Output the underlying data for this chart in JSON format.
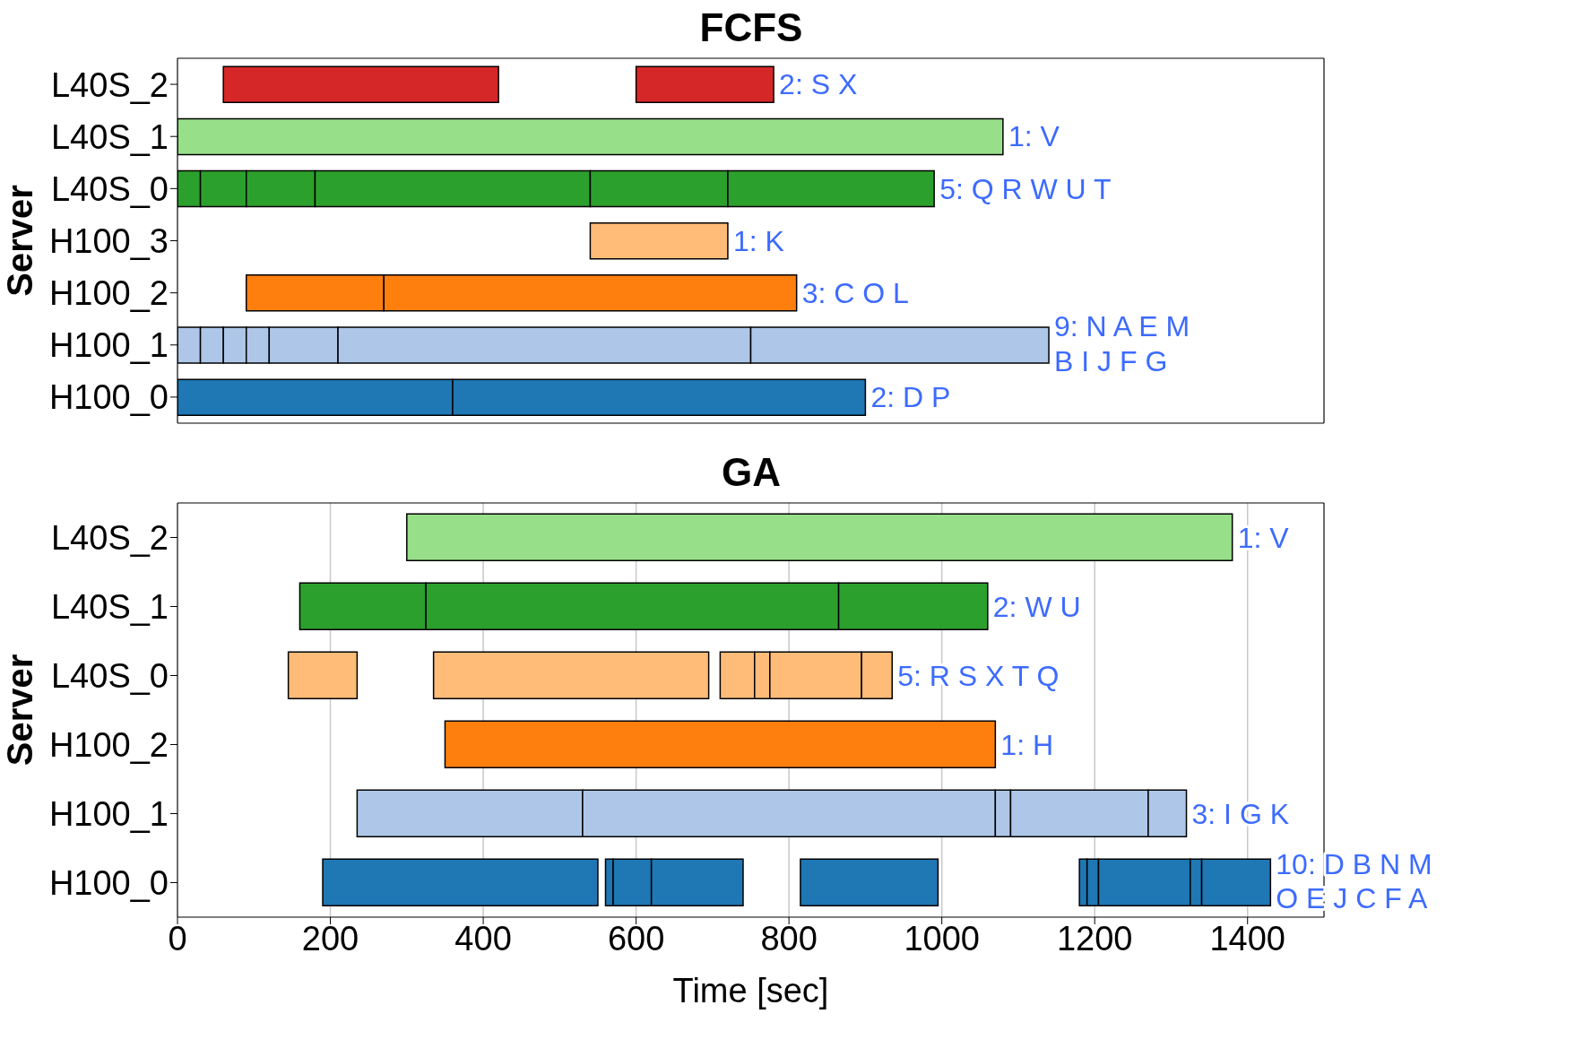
{
  "chart_data": [
    {
      "type": "bar",
      "title": "FCFS",
      "ylabel": "Server",
      "orientation": "horizontal",
      "categories": [
        "L40S_2",
        "L40S_1",
        "L40S_0",
        "H100_3",
        "H100_2",
        "H100_1",
        "H100_0"
      ],
      "xlim": [
        0,
        1500
      ],
      "xticks": [
        0,
        200,
        400,
        600,
        800,
        1000,
        1200,
        1400
      ],
      "grid": "x",
      "tick_labels": "y",
      "series": [
        {
          "base": [
            60,
            0,
            0,
            540,
            90,
            0,
            0
          ],
          "values": [
            360,
            1080,
            30,
            180,
            180,
            30,
            360
          ],
          "colors": [
            "#d62728",
            "#98df8a",
            "#2ca02c",
            "#ffbb78",
            "#ff7f0e",
            "#aec7e8",
            "#1f77b4"
          ]
        },
        {
          "base": [
            600,
            null,
            30,
            null,
            270,
            30,
            360
          ],
          "values": [
            180,
            null,
            60,
            null,
            540,
            30,
            540
          ],
          "colors": [
            "#d62728",
            null,
            "#2ca02c",
            null,
            "#ff7f0e",
            "#aec7e8",
            "#1f77b4"
          ]
        },
        {
          "base": [
            null,
            null,
            90,
            null,
            null,
            60,
            null
          ],
          "values": [
            null,
            null,
            90,
            null,
            null,
            30,
            null
          ],
          "colors": [
            null,
            null,
            "#2ca02c",
            null,
            null,
            "#aec7e8",
            null
          ]
        },
        {
          "base": [
            null,
            null,
            180,
            null,
            null,
            90,
            null
          ],
          "values": [
            null,
            null,
            360,
            null,
            null,
            30,
            null
          ],
          "colors": [
            null,
            null,
            "#2ca02c",
            null,
            null,
            "#aec7e8",
            null
          ]
        },
        {
          "base": [
            null,
            null,
            540,
            null,
            null,
            120,
            null
          ],
          "values": [
            null,
            null,
            180,
            null,
            null,
            90,
            null
          ],
          "colors": [
            null,
            null,
            "#2ca02c",
            null,
            null,
            "#aec7e8",
            null
          ]
        },
        {
          "base": [
            null,
            null,
            720,
            null,
            null,
            210,
            null
          ],
          "values": [
            null,
            null,
            270,
            null,
            null,
            540,
            null
          ],
          "colors": [
            null,
            null,
            "#2ca02c",
            null,
            null,
            "#aec7e8",
            null
          ]
        },
        {
          "base": [
            null,
            null,
            null,
            null,
            null,
            750,
            null
          ],
          "values": [
            null,
            null,
            null,
            null,
            null,
            390,
            null
          ],
          "colors": [
            null,
            null,
            null,
            null,
            null,
            "#aec7e8",
            null
          ]
        }
      ],
      "annotations": [
        {
          "text": "2: S X",
          "x": 780,
          "y": "L40S_2"
        },
        {
          "text": "1: V",
          "x": 1080,
          "y": "L40S_1"
        },
        {
          "text": "5: Q R W U T",
          "x": 990,
          "y": "L40S_0"
        },
        {
          "text": "1: K",
          "x": 720,
          "y": "H100_3"
        },
        {
          "text": "3: C O L",
          "x": 810,
          "y": "H100_2"
        },
        {
          "text": "9: N A E M\nB I J F G",
          "x": 1140,
          "y": "H100_1"
        },
        {
          "text": "2: D P",
          "x": 900,
          "y": "H100_0"
        }
      ]
    },
    {
      "type": "bar",
      "title": "GA",
      "ylabel": "Server",
      "xlabel": "Time [sec]",
      "orientation": "horizontal",
      "categories": [
        "L40S_2",
        "L40S_1",
        "L40S_0",
        "H100_2",
        "H100_1",
        "H100_0"
      ],
      "xlim": [
        0,
        1500
      ],
      "xticks": [
        0,
        200,
        400,
        600,
        800,
        1000,
        1200,
        1400
      ],
      "grid": "x",
      "series": [
        {
          "base": [
            300,
            160,
            145,
            350,
            235,
            190
          ],
          "values": [
            1080,
            165,
            90,
            720,
            295,
            360
          ],
          "colors": [
            "#98df8a",
            "#2ca02c",
            "#ffbb78",
            "#ff7f0e",
            "#aec7e8",
            "#1f77b4"
          ]
        },
        {
          "base": [
            null,
            325,
            335,
            null,
            530,
            560
          ],
          "values": [
            null,
            540,
            360,
            null,
            540,
            10
          ],
          "colors": [
            null,
            "#2ca02c",
            "#ffbb78",
            null,
            "#aec7e8",
            "#1f77b4"
          ]
        },
        {
          "base": [
            null,
            865,
            710,
            null,
            1070,
            570
          ],
          "values": [
            null,
            195,
            45,
            null,
            20,
            50
          ],
          "colors": [
            null,
            "#2ca02c",
            "#ffbb78",
            null,
            "#aec7e8",
            "#1f77b4"
          ]
        },
        {
          "base": [
            null,
            null,
            755,
            null,
            1090,
            620
          ],
          "values": [
            null,
            null,
            20,
            null,
            180,
            120
          ],
          "colors": [
            null,
            null,
            "#ffbb78",
            null,
            "#aec7e8",
            "#1f77b4"
          ]
        },
        {
          "base": [
            null,
            null,
            775,
            null,
            1270,
            815
          ],
          "values": [
            null,
            null,
            120,
            null,
            50,
            180
          ],
          "colors": [
            null,
            null,
            "#ffbb78",
            null,
            "#aec7e8",
            "#1f77b4"
          ]
        },
        {
          "base": [
            null,
            null,
            895,
            null,
            null,
            1180
          ],
          "values": [
            null,
            null,
            40,
            null,
            null,
            10
          ],
          "colors": [
            null,
            null,
            "#ffbb78",
            null,
            null,
            "#1f77b4"
          ]
        },
        {
          "base": [
            null,
            null,
            null,
            null,
            null,
            1190
          ],
          "values": [
            null,
            null,
            null,
            null,
            null,
            15
          ],
          "colors": [
            null,
            null,
            null,
            null,
            null,
            "#1f77b4"
          ]
        },
        {
          "base": [
            null,
            null,
            null,
            null,
            null,
            1205
          ],
          "values": [
            null,
            null,
            null,
            null,
            null,
            120
          ],
          "colors": [
            null,
            null,
            null,
            null,
            null,
            "#1f77b4"
          ]
        },
        {
          "base": [
            null,
            null,
            null,
            null,
            null,
            1325
          ],
          "values": [
            null,
            null,
            null,
            null,
            null,
            15
          ],
          "colors": [
            null,
            null,
            null,
            null,
            null,
            "#1f77b4"
          ]
        },
        {
          "base": [
            null,
            null,
            null,
            null,
            null,
            1340
          ],
          "values": [
            null,
            null,
            null,
            null,
            null,
            90
          ],
          "colors": [
            null,
            null,
            null,
            null,
            null,
            "#1f77b4"
          ]
        }
      ],
      "annotations": [
        {
          "text": "1: V",
          "x": 1380,
          "y": "L40S_2"
        },
        {
          "text": "2: W U",
          "x": 1060,
          "y": "L40S_1"
        },
        {
          "text": "5: R S X T Q",
          "x": 935,
          "y": "L40S_0"
        },
        {
          "text": "1: H",
          "x": 1070,
          "y": "H100_2"
        },
        {
          "text": "3: I G K",
          "x": 1320,
          "y": "H100_1"
        },
        {
          "text": "10: D B N M\nO E J C F A",
          "x": 1430,
          "y": "H100_0"
        }
      ]
    }
  ]
}
